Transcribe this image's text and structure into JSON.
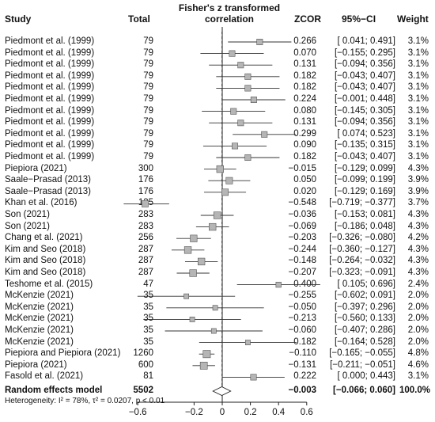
{
  "headers": {
    "study": "Study",
    "total": "Total",
    "plot_title_line1": "Fisher's z transformed",
    "plot_title_line2": "correlation",
    "zcor": "ZCOR",
    "ci": "95%−CI",
    "weight": "Weight"
  },
  "chart_data": {
    "type": "forest",
    "xlim": [
      -0.7,
      0.7
    ],
    "xticks": [
      -0.6,
      -0.2,
      0,
      0.2,
      0.4,
      0.6
    ],
    "xtick_labels": [
      "−0.6",
      "−0.2",
      "0",
      "0.2",
      "0.4",
      "0.6"
    ],
    "studies": [
      {
        "study": "Piedmont et al. (1999)",
        "total": "79",
        "zcor": 0.266,
        "lo": 0.041,
        "hi": 0.491,
        "zcor_text": "0.266",
        "ci_text": "[ 0.041;  0.491]",
        "weight": "3.1%"
      },
      {
        "study": "Piedmont et al. (1999)",
        "total": "79",
        "zcor": 0.07,
        "lo": -0.155,
        "hi": 0.295,
        "zcor_text": "0.070",
        "ci_text": "[−0.155;  0.295]",
        "weight": "3.1%"
      },
      {
        "study": "Piedmont et al. (1999)",
        "total": "79",
        "zcor": 0.131,
        "lo": -0.094,
        "hi": 0.356,
        "zcor_text": "0.131",
        "ci_text": "[−0.094;  0.356]",
        "weight": "3.1%"
      },
      {
        "study": "Piedmont et al. (1999)",
        "total": "79",
        "zcor": 0.182,
        "lo": -0.043,
        "hi": 0.407,
        "zcor_text": "0.182",
        "ci_text": "[−0.043;  0.407]",
        "weight": "3.1%"
      },
      {
        "study": "Piedmont et al. (1999)",
        "total": "79",
        "zcor": 0.182,
        "lo": -0.043,
        "hi": 0.407,
        "zcor_text": "0.182",
        "ci_text": "[−0.043;  0.407]",
        "weight": "3.1%"
      },
      {
        "study": "Piedmont et al. (1999)",
        "total": "79",
        "zcor": 0.224,
        "lo": -0.001,
        "hi": 0.448,
        "zcor_text": "0.224",
        "ci_text": "[−0.001;  0.448]",
        "weight": "3.1%"
      },
      {
        "study": "Piedmont et al. (1999)",
        "total": "79",
        "zcor": 0.08,
        "lo": -0.145,
        "hi": 0.305,
        "zcor_text": "0.080",
        "ci_text": "[−0.145;  0.305]",
        "weight": "3.1%"
      },
      {
        "study": "Piedmont et al. (1999)",
        "total": "79",
        "zcor": 0.131,
        "lo": -0.094,
        "hi": 0.356,
        "zcor_text": "0.131",
        "ci_text": "[−0.094;  0.356]",
        "weight": "3.1%"
      },
      {
        "study": "Piedmont et al. (1999)",
        "total": "79",
        "zcor": 0.299,
        "lo": 0.074,
        "hi": 0.523,
        "zcor_text": "0.299",
        "ci_text": "[ 0.074;  0.523]",
        "weight": "3.1%"
      },
      {
        "study": "Piedmont et al. (1999)",
        "total": "79",
        "zcor": 0.09,
        "lo": -0.135,
        "hi": 0.315,
        "zcor_text": "0.090",
        "ci_text": "[−0.135;  0.315]",
        "weight": "3.1%"
      },
      {
        "study": "Piedmont et al. (1999)",
        "total": "79",
        "zcor": 0.182,
        "lo": -0.043,
        "hi": 0.407,
        "zcor_text": "0.182",
        "ci_text": "[−0.043;  0.407]",
        "weight": "3.1%"
      },
      {
        "study": "Piepiora (2021)",
        "total": "300",
        "zcor": -0.015,
        "lo": -0.129,
        "hi": 0.099,
        "zcor_text": "−0.015",
        "ci_text": "[−0.129;  0.099]",
        "weight": "4.3%"
      },
      {
        "study": "Saale−Prasad (2013)",
        "total": "176",
        "zcor": 0.05,
        "lo": -0.099,
        "hi": 0.199,
        "zcor_text": "0.050",
        "ci_text": "[−0.099;  0.199]",
        "weight": "3.9%"
      },
      {
        "study": "Saale−Prasad (2013)",
        "total": "176",
        "zcor": 0.02,
        "lo": -0.129,
        "hi": 0.169,
        "zcor_text": "0.020",
        "ci_text": "[−0.129;  0.169]",
        "weight": "3.9%"
      },
      {
        "study": "Khan et al. (2016)",
        "total": "135",
        "zcor": -0.548,
        "lo": -0.719,
        "hi": -0.377,
        "zcor_text": "−0.548",
        "ci_text": "[−0.719; −0.377]",
        "weight": "3.7%"
      },
      {
        "study": "Son (2021)",
        "total": "283",
        "zcor": -0.036,
        "lo": -0.153,
        "hi": 0.081,
        "zcor_text": "−0.036",
        "ci_text": "[−0.153;  0.081]",
        "weight": "4.3%"
      },
      {
        "study": "Son (2021)",
        "total": "283",
        "zcor": -0.069,
        "lo": -0.186,
        "hi": 0.048,
        "zcor_text": "−0.069",
        "ci_text": "[−0.186;  0.048]",
        "weight": "4.3%"
      },
      {
        "study": "Chang et al. (2021)",
        "total": "256",
        "zcor": -0.203,
        "lo": -0.326,
        "hi": -0.08,
        "zcor_text": "−0.203",
        "ci_text": "[−0.326; −0.080]",
        "weight": "4.2%"
      },
      {
        "study": "Kim and Seo (2018)",
        "total": "287",
        "zcor": -0.244,
        "lo": -0.36,
        "hi": -0.127,
        "zcor_text": "−0.244",
        "ci_text": "[−0.360; −0.127]",
        "weight": "4.3%"
      },
      {
        "study": "Kim and Seo (2018)",
        "total": "287",
        "zcor": -0.148,
        "lo": -0.264,
        "hi": -0.032,
        "zcor_text": "−0.148",
        "ci_text": "[−0.264; −0.032]",
        "weight": "4.3%"
      },
      {
        "study": "Kim and Seo (2018)",
        "total": "287",
        "zcor": -0.207,
        "lo": -0.323,
        "hi": -0.091,
        "zcor_text": "−0.207",
        "ci_text": "[−0.323; −0.091]",
        "weight": "4.3%"
      },
      {
        "study": "Teshome et al. (2015)",
        "total": "47",
        "zcor": 0.4,
        "lo": 0.105,
        "hi": 0.696,
        "zcor_text": "0.400",
        "ci_text": "[ 0.105;  0.696]",
        "weight": "2.4%"
      },
      {
        "study": "McKenzie (2021)",
        "total": "35",
        "zcor": -0.255,
        "lo": -0.602,
        "hi": 0.091,
        "zcor_text": "−0.255",
        "ci_text": "[−0.602;  0.091]",
        "weight": "2.0%"
      },
      {
        "study": "McKenzie (2021)",
        "total": "35",
        "zcor": -0.05,
        "lo": -0.397,
        "hi": 0.296,
        "zcor_text": "−0.050",
        "ci_text": "[−0.397;  0.296]",
        "weight": "2.0%"
      },
      {
        "study": "McKenzie (2021)",
        "total": "35",
        "zcor": -0.213,
        "lo": -0.56,
        "hi": 0.133,
        "zcor_text": "−0.213",
        "ci_text": "[−0.560;  0.133]",
        "weight": "2.0%"
      },
      {
        "study": "McKenzie (2021)",
        "total": "35",
        "zcor": -0.06,
        "lo": -0.407,
        "hi": 0.286,
        "zcor_text": "−0.060",
        "ci_text": "[−0.407;  0.286]",
        "weight": "2.0%"
      },
      {
        "study": "McKenzie (2021)",
        "total": "35",
        "zcor": 0.182,
        "lo": -0.164,
        "hi": 0.528,
        "zcor_text": "0.182",
        "ci_text": "[−0.164;  0.528]",
        "weight": "2.0%"
      },
      {
        "study": "Piepiora and Piepiora (2021)",
        "total": "1260",
        "zcor": -0.11,
        "lo": -0.165,
        "hi": -0.055,
        "zcor_text": "−0.110",
        "ci_text": "[−0.165; −0.055]",
        "weight": "4.8%"
      },
      {
        "study": "Piepiora (2021)",
        "total": "600",
        "zcor": -0.131,
        "lo": -0.211,
        "hi": -0.051,
        "zcor_text": "−0.131",
        "ci_text": "[−0.211; −0.051]",
        "weight": "4.6%"
      },
      {
        "study": "Fasold et al. (2021)",
        "total": "81",
        "zcor": 0.222,
        "lo": 0.0,
        "hi": 0.443,
        "zcor_text": "0.222",
        "ci_text": "[ 0.000;  0.443]",
        "weight": "3.1%"
      }
    ],
    "summary": {
      "label": "Random effects model",
      "total": "5502",
      "zcor": -0.003,
      "lo": -0.066,
      "hi": 0.06,
      "zcor_text": "−0.003",
      "ci_text": "[−0.066;  0.060]",
      "weight": "100.0%"
    },
    "heterogeneity": "Heterogeneity: I² = 78%, τ² = 0.0207, p < 0.01"
  }
}
